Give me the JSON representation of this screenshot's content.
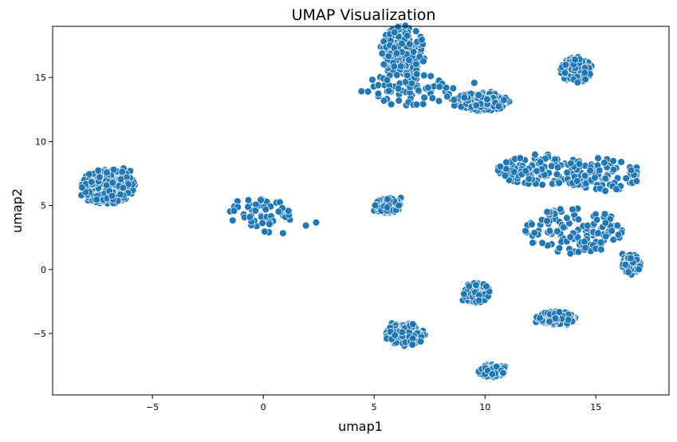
{
  "chart_data": {
    "type": "scatter",
    "title": "UMAP Visualization",
    "xlabel": "umap1",
    "ylabel": "umap2",
    "xlim": [
      -9.5,
      18.3
    ],
    "ylim": [
      -9.8,
      19.0
    ],
    "xticks": [
      -5,
      0,
      5,
      10,
      15
    ],
    "yticks": [
      -5,
      0,
      5,
      10,
      15
    ],
    "xtick_labels": [
      "−5",
      "0",
      "5",
      "10",
      "15"
    ],
    "ytick_labels": [
      "−5",
      "0",
      "5",
      "10",
      "15"
    ],
    "grid": false,
    "legend": "none",
    "point_color": "#1f77b4",
    "point_edge_color": "#ffffff",
    "clusters": [
      {
        "center": [
          -7.0,
          6.5
        ],
        "count": 260
      },
      {
        "center": [
          -0.3,
          4.5
        ],
        "count": 40
      },
      {
        "center": [
          1.1,
          4.0
        ],
        "count": 8
      },
      {
        "center": [
          5.6,
          5.0
        ],
        "count": 90
      },
      {
        "center": [
          6.3,
          17.0
        ],
        "count": 170
      },
      {
        "center": [
          6.5,
          14.1
        ],
        "count": 70
      },
      {
        "center": [
          8.5,
          13.3
        ],
        "count": 4
      },
      {
        "center": [
          9.8,
          13.1
        ],
        "count": 150
      },
      {
        "center": [
          14.1,
          15.6
        ],
        "count": 110
      },
      {
        "center": [
          12.5,
          7.8
        ],
        "count": 110
      },
      {
        "center": [
          15.0,
          7.4
        ],
        "count": 90
      },
      {
        "center": [
          14.0,
          3.0
        ],
        "count": 120
      },
      {
        "center": [
          16.6,
          0.4
        ],
        "count": 80
      },
      {
        "center": [
          9.6,
          -1.8
        ],
        "count": 70
      },
      {
        "center": [
          13.2,
          -3.8
        ],
        "count": 150
      },
      {
        "center": [
          6.4,
          -5.1
        ],
        "count": 110
      },
      {
        "center": [
          10.3,
          -7.9
        ],
        "count": 110
      }
    ],
    "points": [
      [
        -8.2,
        5.8
      ],
      [
        -7.9,
        5.4
      ],
      [
        -7.7,
        6.0
      ],
      [
        -7.6,
        6.6
      ],
      [
        -7.4,
        5.9
      ],
      [
        -7.3,
        6.3
      ],
      [
        -7.2,
        6.8
      ],
      [
        -7.0,
        7.2
      ],
      [
        -6.9,
        5.5
      ],
      [
        -6.8,
        6.2
      ],
      [
        -6.6,
        7.6
      ],
      [
        -6.5,
        6.6
      ],
      [
        -6.3,
        7.9
      ],
      [
        -6.2,
        6.3
      ],
      [
        -6.0,
        7.7
      ],
      [
        -5.9,
        7.0
      ],
      [
        -5.8,
        6.6
      ],
      [
        -6.7,
        6.9
      ],
      [
        -7.5,
        7.1
      ],
      [
        -6.4,
        6.0
      ],
      [
        -0.5,
        4.6
      ],
      [
        -0.3,
        3.4
      ],
      [
        -0.2,
        5.0
      ],
      [
        0.0,
        5.4
      ],
      [
        -0.4,
        3.8
      ],
      [
        0.1,
        4.8
      ],
      [
        -0.1,
        4.2
      ],
      [
        0.9,
        4.2
      ],
      [
        1.2,
        3.9
      ],
      [
        1.0,
        4.1
      ],
      [
        5.0,
        4.6
      ],
      [
        5.2,
        5.1
      ],
      [
        5.4,
        5.5
      ],
      [
        5.5,
        4.4
      ],
      [
        5.7,
        5.6
      ],
      [
        5.9,
        4.9
      ],
      [
        6.1,
        5.3
      ],
      [
        6.2,
        5.6
      ],
      [
        5.3,
        17.4
      ],
      [
        5.5,
        16.8
      ],
      [
        5.8,
        17.6
      ],
      [
        6.0,
        16.6
      ],
      [
        6.2,
        17.3
      ],
      [
        6.5,
        17.8
      ],
      [
        6.7,
        16.5
      ],
      [
        6.9,
        17.2
      ],
      [
        7.1,
        17.0
      ],
      [
        5.9,
        14.3
      ],
      [
        6.2,
        13.9
      ],
      [
        6.5,
        14.5
      ],
      [
        6.7,
        13.6
      ],
      [
        6.9,
        14.9
      ],
      [
        7.0,
        14.0
      ],
      [
        6.9,
        15.4
      ],
      [
        8.5,
        13.3
      ],
      [
        8.7,
        13.2
      ],
      [
        9.0,
        13.0
      ],
      [
        9.3,
        12.7
      ],
      [
        9.5,
        13.5
      ],
      [
        9.7,
        12.4
      ],
      [
        9.9,
        13.8
      ],
      [
        10.1,
        12.9
      ],
      [
        10.3,
        13.6
      ],
      [
        10.5,
        13.2
      ],
      [
        13.7,
        14.8
      ],
      [
        13.9,
        15.4
      ],
      [
        14.1,
        16.0
      ],
      [
        14.2,
        16.6
      ],
      [
        14.4,
        15.2
      ],
      [
        14.6,
        16.2
      ],
      [
        14.8,
        15.9
      ],
      [
        13.8,
        15.8
      ],
      [
        11.8,
        7.8
      ],
      [
        12.1,
        8.1
      ],
      [
        12.3,
        7.6
      ],
      [
        12.5,
        8.3
      ],
      [
        12.7,
        7.3
      ],
      [
        12.9,
        8.0
      ],
      [
        13.1,
        8.6
      ],
      [
        13.3,
        7.4
      ],
      [
        14.4,
        6.6
      ],
      [
        14.6,
        7.2
      ],
      [
        14.8,
        8.2
      ],
      [
        15.0,
        7.6
      ],
      [
        15.1,
        8.7
      ],
      [
        15.3,
        7.1
      ],
      [
        15.5,
        8.0
      ],
      [
        13.4,
        2.7
      ],
      [
        13.6,
        3.3
      ],
      [
        13.8,
        3.6
      ],
      [
        14.0,
        2.4
      ],
      [
        14.2,
        3.1
      ],
      [
        14.4,
        2.0
      ],
      [
        14.5,
        3.4
      ],
      [
        14.7,
        2.9
      ],
      [
        16.2,
        1.2
      ],
      [
        16.4,
        0.3
      ],
      [
        16.5,
        -0.3
      ],
      [
        16.6,
        0.8
      ],
      [
        16.8,
        1.0
      ],
      [
        17.0,
        0.5
      ],
      [
        16.4,
        0.6
      ],
      [
        9.0,
        -2.4
      ],
      [
        9.2,
        -2.0
      ],
      [
        9.5,
        -1.6
      ],
      [
        9.7,
        -1.1
      ],
      [
        9.9,
        -2.2
      ],
      [
        10.1,
        -1.4
      ],
      [
        9.6,
        -2.6
      ],
      [
        12.3,
        -4.1
      ],
      [
        12.6,
        -3.5
      ],
      [
        12.8,
        -4.2
      ],
      [
        13.0,
        -3.3
      ],
      [
        13.3,
        -4.0
      ],
      [
        13.5,
        -3.6
      ],
      [
        13.7,
        -4.3
      ],
      [
        13.9,
        -3.9
      ],
      [
        5.6,
        -4.8
      ],
      [
        5.8,
        -4.2
      ],
      [
        6.0,
        -5.2
      ],
      [
        6.3,
        -5.0
      ],
      [
        6.5,
        -5.6
      ],
      [
        6.8,
        -4.9
      ],
      [
        7.1,
        -5.3
      ],
      [
        7.3,
        -5.1
      ],
      [
        9.8,
        -8.0
      ],
      [
        10.0,
        -8.3
      ],
      [
        10.2,
        -7.7
      ],
      [
        10.4,
        -8.4
      ],
      [
        10.6,
        -7.9
      ],
      [
        10.8,
        -8.2
      ],
      [
        10.9,
        -7.6
      ]
    ]
  }
}
